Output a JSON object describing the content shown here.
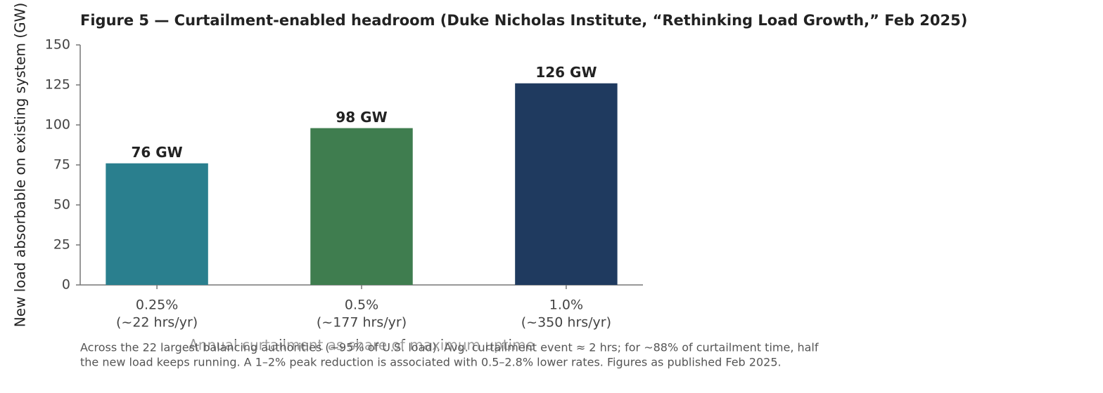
{
  "chart_data": {
    "type": "bar",
    "title": "Figure 5 — Curtailment-enabled headroom (Duke Nicholas Institute, “Rethinking Load Growth,” Feb 2025)",
    "categories": [
      [
        "0.25%",
        "(~22 hrs/yr)"
      ],
      [
        "0.5%",
        "(~177 hrs/yr)"
      ],
      [
        "1.0%",
        "(~350 hrs/yr)"
      ]
    ],
    "values": [
      76,
      98,
      126
    ],
    "value_labels": [
      "76 GW",
      "98 GW",
      "126 GW"
    ],
    "colors": [
      "#2a7f8e",
      "#3f7d4f",
      "#1f3a5f"
    ],
    "xlabel": "Annual curtailment as share of maximum uptime",
    "ylabel": "New load absorbable on existing system (GW)",
    "ylim": [
      0,
      150
    ],
    "yticks": [
      0,
      25,
      50,
      75,
      100,
      125,
      150
    ],
    "grid": false,
    "footnote": [
      "Across the 22 largest balancing authorities (~95% of U.S. load). Avg. curtailment event ≈ 2 hrs; for ~88% of curtailment time, half",
      "the new load keeps running. A 1–2% peak reduction is associated with 0.5–2.8% lower rates. Figures as published Feb 2025."
    ]
  }
}
